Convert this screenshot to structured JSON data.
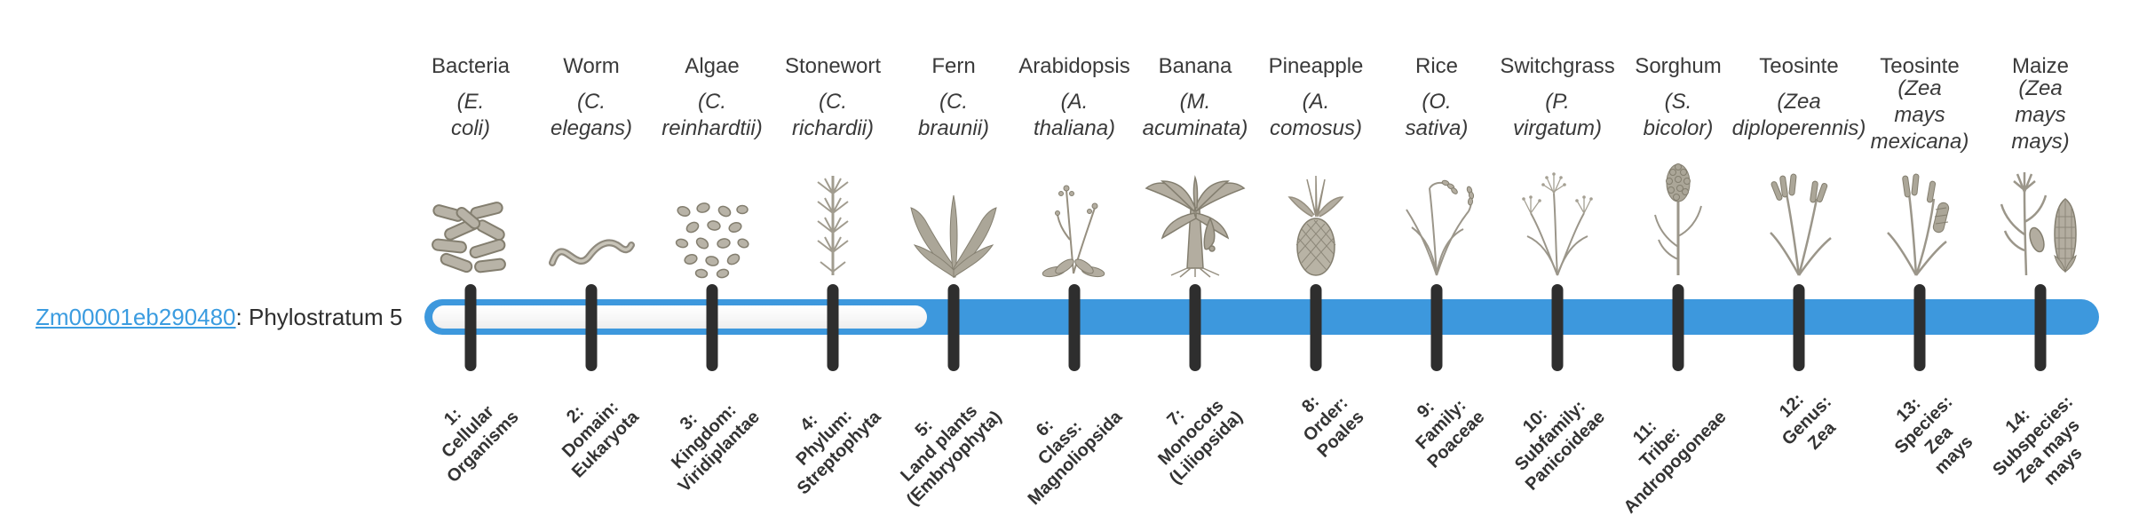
{
  "page": {
    "background": "#ffffff",
    "text_color": "#3a3a3a"
  },
  "gene": {
    "link_text": "Zm00001eb290480",
    "suffix": ": Phylostratum 5",
    "phylostratum": 5,
    "link_color": "#3b9ce0"
  },
  "timeline": {
    "bar_color": "#3d98dd",
    "unfilled_color": "#ededed",
    "tick_color": "#2e2e2e",
    "filled_from_stratum": 5,
    "total_strata": 14
  },
  "strata": [
    {
      "number": 1,
      "common_name": "Bacteria",
      "scientific_name": "(E. coli)",
      "clade_label": "1:\nCellular\nOrganisms",
      "illustration": "bacteria-engraving",
      "filled": false
    },
    {
      "number": 2,
      "common_name": "Worm",
      "scientific_name": "(C. elegans)",
      "clade_label": "2:\nDomain:\nEukaryota",
      "illustration": "worm-engraving",
      "filled": false
    },
    {
      "number": 3,
      "common_name": "Algae",
      "scientific_name": "(C.\nreinhardtii)",
      "clade_label": "3:\nKingdom:\nViridiplantae",
      "illustration": "algae-engraving",
      "filled": false
    },
    {
      "number": 4,
      "common_name": "Stonewort",
      "scientific_name": "(C. richardii)",
      "clade_label": "4:\nPhylum:\nStreptophyta",
      "illustration": "stonewort-engraving",
      "filled": false
    },
    {
      "number": 5,
      "common_name": "Fern",
      "scientific_name": "(C. braunii)",
      "clade_label": "5:\nLand plants\n(Embryophyta)",
      "illustration": "fern-engraving",
      "filled": true
    },
    {
      "number": 6,
      "common_name": "Arabidopsis",
      "scientific_name": "(A. thaliana)",
      "clade_label": "6:\nClass:\nMagnoliopsida",
      "illustration": "arabidopsis-engraving",
      "filled": true
    },
    {
      "number": 7,
      "common_name": "Banana",
      "scientific_name": "(M.\nacuminata)",
      "clade_label": "7:\nMonocots\n(Liliopsida)",
      "illustration": "banana-engraving",
      "filled": true
    },
    {
      "number": 8,
      "common_name": "Pineapple",
      "scientific_name": "(A.\ncomosus)",
      "clade_label": "8:\nOrder:\nPoales",
      "illustration": "pineapple-engraving",
      "filled": true
    },
    {
      "number": 9,
      "common_name": "Rice",
      "scientific_name": "(O. sativa)",
      "clade_label": "9:\nFamily:\nPoaceae",
      "illustration": "rice-engraving",
      "filled": true
    },
    {
      "number": 10,
      "common_name": "Switchgrass",
      "scientific_name": "(P.\nvirgatum)",
      "clade_label": "10:\nSubfamily:\nPanicoideae",
      "illustration": "switchgrass-engraving",
      "filled": true
    },
    {
      "number": 11,
      "common_name": "Sorghum",
      "scientific_name": "(S. bicolor)",
      "clade_label": "11:\nTribe:\nAndropogoneae",
      "illustration": "sorghum-engraving",
      "filled": true
    },
    {
      "number": 12,
      "common_name": "Teosinte",
      "scientific_name": "(Zea\ndiploperennis)",
      "clade_label": "12:\nGenus:\nZea",
      "illustration": "teosinte-engraving",
      "filled": true
    },
    {
      "number": 13,
      "common_name": "Teosinte",
      "scientific_name": "(Zea mays\nmexicana)",
      "clade_label": "13:\nSpecies:\nZea\nmays",
      "illustration": "teosinte2-engraving",
      "filled": true
    },
    {
      "number": 14,
      "common_name": "Maize",
      "scientific_name": "(Zea mays\nmays)",
      "clade_label": "14:\nSubspecies:\nZea mays\nmays",
      "illustration": "maize-engraving",
      "filled": true
    }
  ]
}
